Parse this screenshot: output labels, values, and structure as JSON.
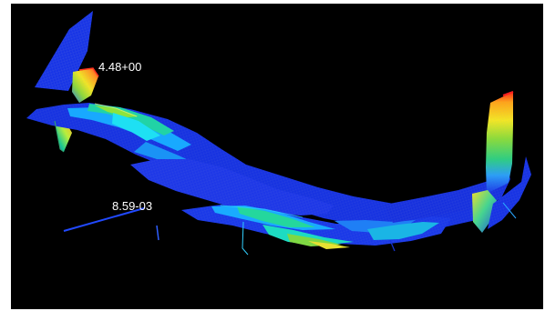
{
  "viewport": {
    "background": "#000000",
    "model": "aircraft-fea-contour"
  },
  "annotations": {
    "max_label": "4.48+00",
    "min_label": "8.59-03"
  },
  "colors": {
    "low": "#1b32e6",
    "low_mid": "#18a8ff",
    "mid": "#22d2a2",
    "mid_high": "#8fdd3b",
    "high": "#f4e21a",
    "max": "#ff3f2a",
    "mesh": "#7f8ec8",
    "edge": "#ff2a18"
  }
}
